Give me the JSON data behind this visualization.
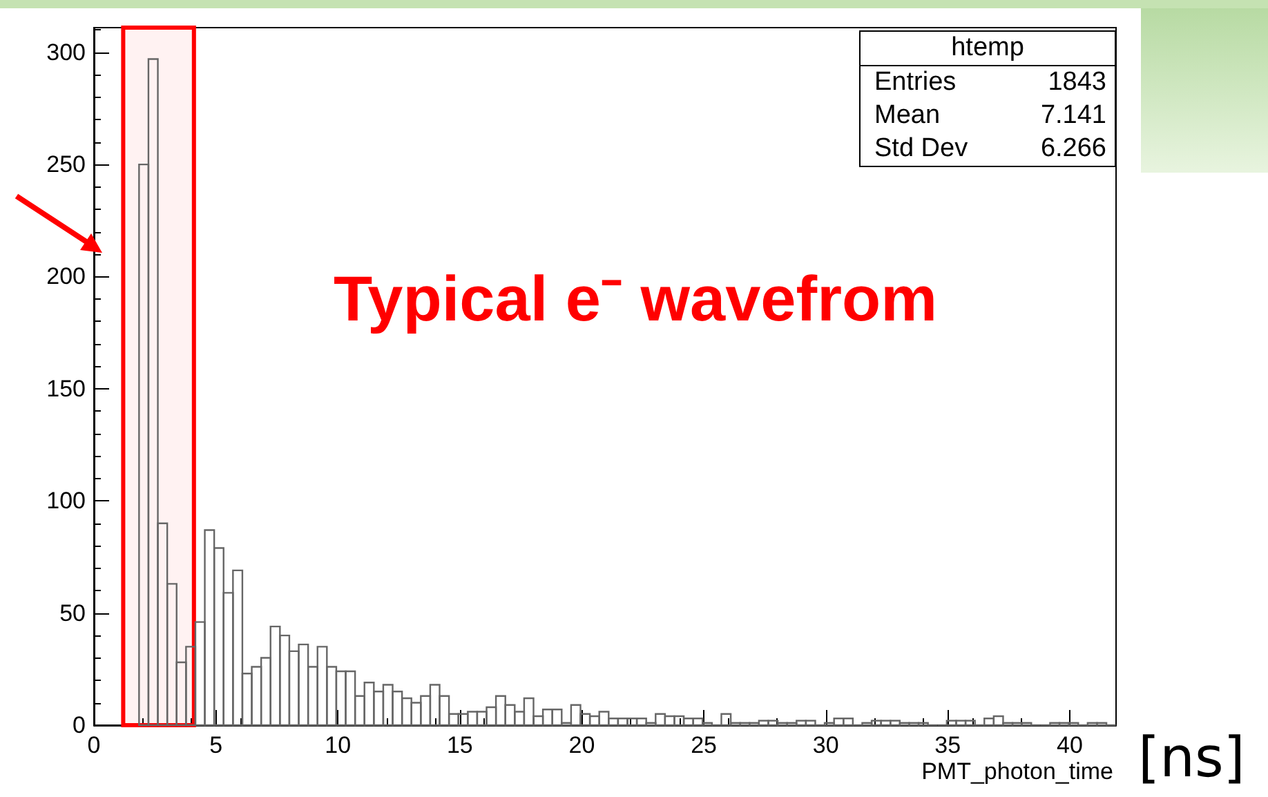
{
  "chart_data": {
    "type": "histogram",
    "xlabel": "PMT_photon_time",
    "color": "#666666",
    "bins": [
      1.85,
      2.235,
      2.62,
      3.005,
      3.39,
      3.775,
      4.16,
      4.545,
      4.93,
      5.315,
      5.7,
      6.085,
      6.47,
      6.855,
      7.24,
      7.625,
      8.01,
      8.395,
      8.78,
      9.165,
      9.55,
      9.935,
      10.32,
      10.705,
      11.09,
      11.475,
      11.86,
      12.245,
      12.63,
      13.015,
      13.4,
      13.785,
      14.17,
      14.555,
      14.94,
      15.325,
      15.71,
      16.095,
      16.48,
      16.865,
      17.25,
      17.635,
      18.02,
      18.405,
      18.79,
      19.175,
      19.56,
      19.945,
      20.33,
      20.715,
      21.1,
      21.485,
      21.87,
      22.255,
      22.64,
      23.025,
      23.41,
      23.795,
      24.18,
      24.565,
      24.95,
      25.335,
      25.72,
      26.105,
      26.49,
      26.875,
      27.26,
      27.645,
      28.03,
      28.415,
      28.8,
      29.185,
      29.57,
      29.955,
      30.34,
      30.725,
      31.11,
      31.495,
      31.88,
      32.265,
      32.65,
      33.035,
      33.42,
      33.805,
      34.19,
      34.575,
      34.96,
      35.345,
      35.73,
      36.115,
      36.5,
      36.885,
      37.27,
      37.655,
      38.04,
      38.425,
      38.81,
      39.195,
      39.58,
      39.965,
      40.35,
      40.735,
      41.12,
      41.505,
      41.89
    ],
    "values": [
      250,
      297,
      90,
      63,
      28,
      35,
      46,
      87,
      79,
      59,
      69,
      23,
      26,
      30,
      44,
      40,
      33,
      36,
      26,
      35,
      26,
      24,
      24,
      13,
      19,
      15,
      18,
      15,
      12,
      10,
      13,
      18,
      13,
      5,
      5,
      6,
      6,
      8,
      13,
      9,
      6,
      12,
      4,
      7,
      7,
      1,
      9,
      5,
      4,
      6,
      3,
      3,
      3,
      3,
      1,
      5,
      4,
      4,
      3,
      3,
      1,
      0,
      5,
      1,
      1,
      1,
      2,
      2,
      1,
      1,
      2,
      2,
      0,
      1,
      3,
      3,
      0,
      1,
      2,
      2,
      2,
      1,
      1,
      1,
      0,
      0,
      2,
      2,
      2,
      0,
      3,
      4,
      1,
      1,
      1,
      0,
      0,
      1,
      1,
      1,
      0,
      1,
      1,
      0
    ],
    "xlim": [
      0,
      41.9
    ],
    "xticks": [
      0,
      5,
      10,
      15,
      20,
      25,
      30,
      35,
      40
    ],
    "ylim": [
      0,
      311
    ],
    "yticks": [
      0,
      50,
      100,
      150,
      200,
      250,
      300
    ],
    "grid": false,
    "bands": [
      {
        "axis": "x",
        "from": 1.2,
        "to": 4.1,
        "color": "#ff0000"
      }
    ],
    "annotations": [
      "htemp",
      "Entries",
      "1843",
      "Mean",
      "7.141",
      "Std Dev",
      "6.266",
      "Typical e⁻ wavefrom",
      "[ns]"
    ]
  }
}
